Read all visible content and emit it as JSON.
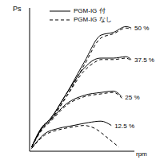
{
  "chart_data": {
    "type": "line",
    "x_label": "rpm",
    "y_label": "Ps",
    "xlim": [
      0,
      100
    ],
    "ylim": [
      0,
      100
    ],
    "tick_labels": false,
    "legend": "top",
    "series": [
      {
        "name": "PGM-IG 付",
        "line_style": "solid",
        "color": "#000000"
      },
      {
        "name": "PGM-IG なし",
        "line_style": "dashed",
        "color": "#000000"
      }
    ],
    "curves": [
      {
        "label": "50 %",
        "lines": [
          {
            "x": [
              2,
              12,
              19,
              35,
              52,
              68,
              80,
              92,
              97
            ],
            "values": [
              3,
              17,
              22,
              40,
              62,
              81,
              83,
              87,
              86
            ]
          },
          {
            "x": [
              2,
              12,
              19,
              35,
              52,
              68,
              80,
              92,
              97
            ],
            "values": [
              3,
              16,
              21,
              38,
              60,
              79,
              82,
              86,
              85
            ]
          }
        ]
      },
      {
        "label": "37.5 %",
        "lines": [
          {
            "x": [
              2,
              12,
              19,
              35,
              52,
              62,
              68,
              80,
              92,
              97
            ],
            "values": [
              3,
              17,
              22,
              40,
              58,
              64,
              65,
              65,
              66,
              64
            ]
          },
          {
            "x": [
              2,
              12,
              19,
              35,
              52,
              62,
              68,
              80,
              92,
              97
            ],
            "values": [
              3,
              16,
              21,
              38,
              56,
              62,
              64,
              64,
              65,
              63
            ]
          }
        ]
      },
      {
        "label": "25 %",
        "lines": [
          {
            "x": [
              2,
              12,
              19,
              35,
              52,
              68,
              80,
              88
            ],
            "values": [
              3,
              16,
              21,
              33,
              39,
              41,
              42,
              38
            ]
          },
          {
            "x": [
              2,
              12,
              19,
              35,
              52,
              68,
              80,
              88
            ],
            "values": [
              3,
              15,
              20,
              32,
              38,
              40,
              41,
              37
            ]
          }
        ]
      },
      {
        "label": "12.5 %",
        "lines": [
          {
            "x": [
              2,
              14,
              28,
              42,
              56,
              68,
              78
            ],
            "values": [
              2,
              12,
              16,
              18,
              20,
              21,
              18
            ]
          },
          {
            "x": [
              2,
              14,
              28,
              42,
              52,
              62,
              75,
              85
            ],
            "values": [
              2,
              11,
              15,
              17,
              18,
              16,
              9,
              3
            ]
          }
        ]
      }
    ]
  }
}
